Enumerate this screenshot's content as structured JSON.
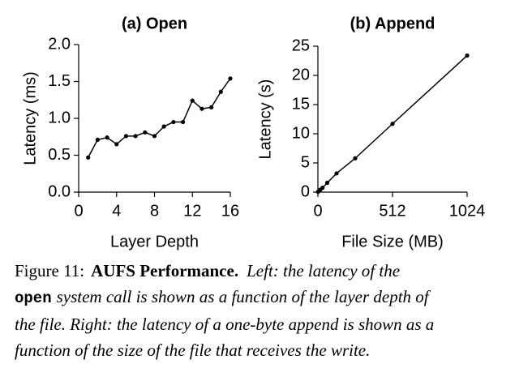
{
  "chart_data": [
    {
      "type": "line",
      "title": "(a) Open",
      "x_label": "Layer Depth",
      "y_label": "Latency (ms)",
      "x": [
        1,
        2,
        3,
        4,
        5,
        6,
        7,
        8,
        9,
        10,
        11,
        12,
        13,
        14,
        15,
        16
      ],
      "values": [
        0.47,
        0.71,
        0.74,
        0.65,
        0.76,
        0.76,
        0.81,
        0.76,
        0.89,
        0.95,
        0.95,
        1.24,
        1.13,
        1.15,
        1.36,
        1.54
      ],
      "color": "#000000",
      "markers": true,
      "xlim": [
        0,
        16
      ],
      "xticks": [
        0,
        4,
        8,
        12,
        16
      ],
      "ylim": [
        0,
        2
      ],
      "yticks": [
        {
          "value": 0,
          "label": "0.0"
        },
        0.5,
        {
          "value": 1,
          "label": "1.0"
        },
        1.5,
        {
          "value": 2,
          "label": "2.0"
        }
      ]
    },
    {
      "type": "line",
      "title": "(b) Append",
      "x_label": "File Size (MB)",
      "y_label": "Latency (s)",
      "x": [
        1,
        16,
        32,
        64,
        128,
        256,
        512,
        1024
      ],
      "values": [
        0.05,
        0.4,
        0.75,
        1.6,
        3.2,
        5.8,
        11.7,
        23.4
      ],
      "color": "#000000",
      "markers": true,
      "xlim": [
        0,
        1024
      ],
      "xticks": [
        0,
        512,
        1024
      ],
      "ylim": [
        0,
        25
      ],
      "yticks": [
        0,
        5,
        10,
        15,
        20,
        25
      ]
    }
  ],
  "caption": {
    "label": "Figure 11:",
    "title": "AUFS Performance.",
    "lines": [
      "Left: the latency of the",
      "open",
      "system call is shown as a function of the layer depth of",
      "the file. Right: the latency of a one-byte append is shown as a",
      "function of the size of the file that receives the write."
    ]
  }
}
